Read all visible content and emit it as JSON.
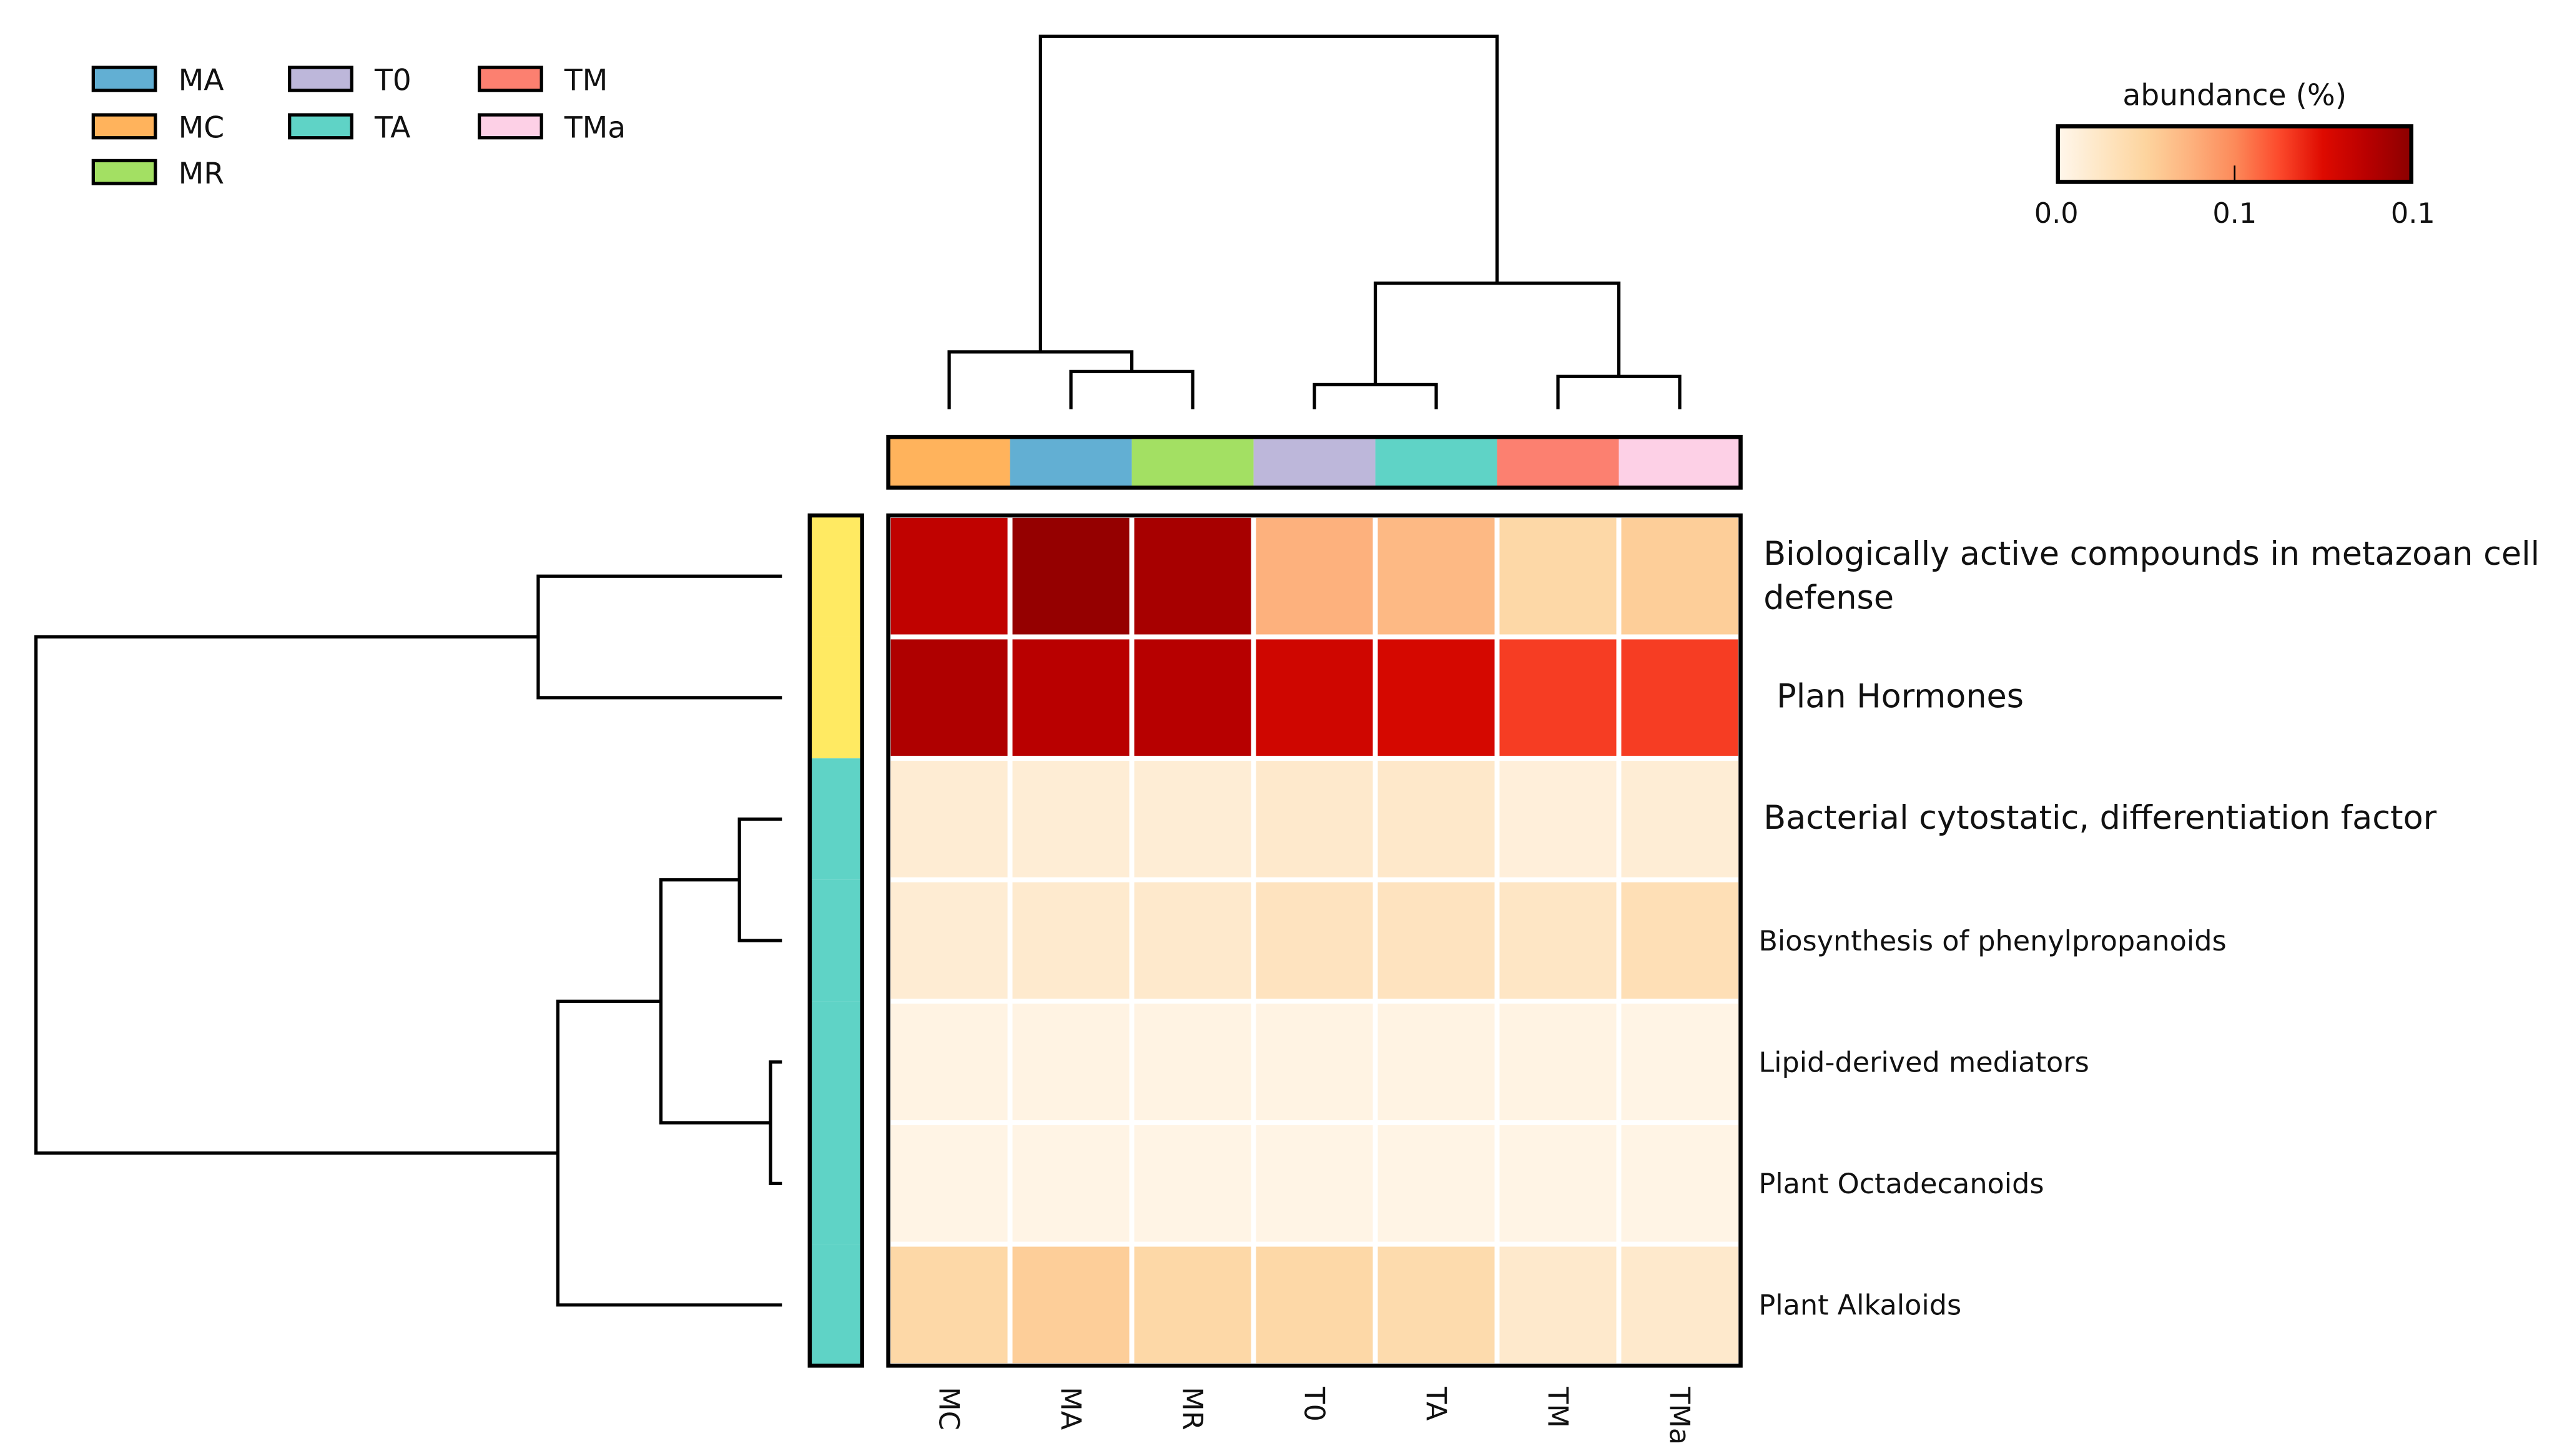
{
  "chart_data": {
    "type": "heatmap",
    "title": "",
    "colorbar": {
      "label": "abundance (%)",
      "tick_labels": [
        "0.0",
        "0.1",
        "0.1"
      ],
      "range": [
        0,
        0.14
      ]
    },
    "columns": [
      "MC",
      "MA",
      "MR",
      "T0",
      "TA",
      "TM",
      "TMa"
    ],
    "rows": [
      "Biologically active compounds in metazoan cell defense",
      "Plan Hormones",
      "Bacterial cytostatic, differentiation factor",
      "Biosynthesis of phenylpropanoids",
      "Lipid-derived mediators",
      "Plant Octadecanoids",
      "Plant Alkaloids"
    ],
    "row_label_lines": [
      [
        "Biologically active compounds in metazoan cell",
        "defense"
      ],
      [
        "Plan Hormones"
      ],
      [
        "Bacterial cytostatic, differentiation factor"
      ],
      [
        "Biosynthesis of phenylpropanoids"
      ],
      [
        "Lipid-derived mediators"
      ],
      [
        "Plant Octadecanoids"
      ],
      [
        "Plant Alkaloids"
      ]
    ],
    "values": [
      [
        0.119,
        0.136,
        0.129,
        0.053,
        0.049,
        0.031,
        0.038
      ],
      [
        0.126,
        0.122,
        0.123,
        0.112,
        0.109,
        0.091,
        0.091
      ],
      [
        0.011,
        0.01,
        0.01,
        0.014,
        0.015,
        0.008,
        0.01
      ],
      [
        0.011,
        0.013,
        0.014,
        0.02,
        0.02,
        0.017,
        0.024
      ],
      [
        0.004,
        0.004,
        0.004,
        0.004,
        0.004,
        0.004,
        0.003
      ],
      [
        0.003,
        0.003,
        0.003,
        0.003,
        0.003,
        0.003,
        0.003
      ],
      [
        0.031,
        0.038,
        0.031,
        0.031,
        0.028,
        0.014,
        0.014
      ]
    ],
    "legend": {
      "placement": "top-left",
      "entries": [
        {
          "name": "MA",
          "color": "#62afd3"
        },
        {
          "name": "MC",
          "color": "#ffb35c"
        },
        {
          "name": "MR",
          "color": "#a3e063"
        },
        {
          "name": "T0",
          "color": "#bdb7da"
        },
        {
          "name": "TA",
          "color": "#5fd3c6"
        },
        {
          "name": "TM",
          "color": "#fc8070"
        },
        {
          "name": "TMa",
          "color": "#fdd0e6"
        }
      ]
    },
    "column_group_colors": [
      "#ffb35c",
      "#62afd3",
      "#a3e063",
      "#bdb7da",
      "#5fd3c6",
      "#fc8070",
      "#fdd0e6"
    ],
    "row_group_colors": [
      "#ffea62",
      "#ffea62",
      "#5fd3c6",
      "#5fd3c6",
      "#5fd3c6",
      "#5fd3c6",
      "#5fd3c6"
    ],
    "colormap": [
      "#fff7ec",
      "#fee6c4",
      "#fdd49e",
      "#fdb27e",
      "#fc8a5a",
      "#fc4a2c",
      "#de0a00",
      "#b80000",
      "#8b0000"
    ]
  }
}
